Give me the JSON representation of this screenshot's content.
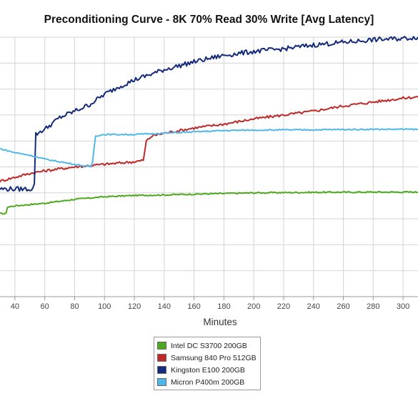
{
  "chart_data": {
    "type": "line",
    "title": "Preconditioning Curve - 8K 70% Read 30% Write [Avg Latency]",
    "xlabel": "Minutes",
    "ylabel": "",
    "xlim": [
      30,
      310
    ],
    "ylim": [
      0,
      10
    ],
    "xticks": [
      40,
      60,
      80,
      100,
      120,
      140,
      160,
      180,
      200,
      220,
      240,
      260,
      280,
      300
    ],
    "grid": true,
    "legend_position": "bottom-center",
    "series": [
      {
        "name": "Intel DC S3700 200GB",
        "color": "#4ca81c",
        "points": [
          [
            30,
            3.2
          ],
          [
            34,
            3.2
          ],
          [
            35,
            3.45
          ],
          [
            40,
            3.5
          ],
          [
            60,
            3.6
          ],
          [
            80,
            3.75
          ],
          [
            100,
            3.85
          ],
          [
            120,
            3.9
          ],
          [
            140,
            3.92
          ],
          [
            160,
            3.95
          ],
          [
            200,
            4.0
          ],
          [
            240,
            4.02
          ],
          [
            280,
            4.03
          ],
          [
            310,
            4.03
          ]
        ]
      },
      {
        "name": "Samsung 840 Pro 512GB",
        "color": "#c02828",
        "points": [
          [
            30,
            4.45
          ],
          [
            40,
            4.6
          ],
          [
            50,
            4.75
          ],
          [
            60,
            4.85
          ],
          [
            80,
            5.0
          ],
          [
            100,
            5.1
          ],
          [
            120,
            5.2
          ],
          [
            126,
            5.25
          ],
          [
            128,
            6.0
          ],
          [
            132,
            6.2
          ],
          [
            140,
            6.3
          ],
          [
            160,
            6.5
          ],
          [
            180,
            6.65
          ],
          [
            200,
            6.85
          ],
          [
            220,
            7.0
          ],
          [
            240,
            7.15
          ],
          [
            260,
            7.35
          ],
          [
            280,
            7.5
          ],
          [
            300,
            7.65
          ],
          [
            310,
            7.7
          ]
        ]
      },
      {
        "name": "Kingston E100 200GB",
        "color": "#142a7c",
        "points": [
          [
            30,
            4.15
          ],
          [
            40,
            4.15
          ],
          [
            52,
            4.15
          ],
          [
            53,
            4.35
          ],
          [
            54,
            6.25
          ],
          [
            58,
            6.4
          ],
          [
            60,
            6.45
          ],
          [
            70,
            6.9
          ],
          [
            80,
            7.15
          ],
          [
            90,
            7.4
          ],
          [
            100,
            7.8
          ],
          [
            110,
            8.1
          ],
          [
            120,
            8.35
          ],
          [
            140,
            8.75
          ],
          [
            160,
            9.05
          ],
          [
            180,
            9.3
          ],
          [
            200,
            9.45
          ],
          [
            220,
            9.55
          ],
          [
            240,
            9.7
          ],
          [
            260,
            9.8
          ],
          [
            280,
            9.9
          ],
          [
            300,
            9.95
          ],
          [
            310,
            10.0
          ]
        ]
      },
      {
        "name": "Micron P400m 200GB",
        "color": "#4fb8e8",
        "points": [
          [
            30,
            5.7
          ],
          [
            40,
            5.55
          ],
          [
            50,
            5.45
          ],
          [
            60,
            5.3
          ],
          [
            70,
            5.2
          ],
          [
            80,
            5.1
          ],
          [
            91,
            5.0
          ],
          [
            92,
            5.2
          ],
          [
            94,
            6.2
          ],
          [
            100,
            6.25
          ],
          [
            120,
            6.25
          ],
          [
            140,
            6.3
          ],
          [
            160,
            6.35
          ],
          [
            180,
            6.4
          ],
          [
            200,
            6.42
          ],
          [
            240,
            6.43
          ],
          [
            280,
            6.45
          ],
          [
            310,
            6.45
          ]
        ]
      }
    ]
  },
  "legend": {
    "items": [
      {
        "label": "Intel DC S3700 200GB",
        "color": "#4ca81c"
      },
      {
        "label": "Samsung 840 Pro 512GB",
        "color": "#c02828"
      },
      {
        "label": "Kingston E100 200GB",
        "color": "#142a7c"
      },
      {
        "label": "Micron P400m 200GB",
        "color": "#4fb8e8"
      }
    ]
  }
}
